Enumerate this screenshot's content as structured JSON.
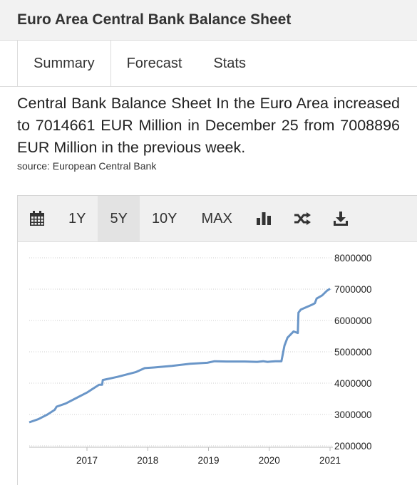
{
  "header": {
    "title": "Euro Area Central Bank Balance Sheet"
  },
  "tabs": [
    {
      "label": "Summary"
    },
    {
      "label": "Forecast"
    },
    {
      "label": "Stats"
    }
  ],
  "summary": {
    "text": "Central Bank Balance Sheet In the Euro Area increased to 7014661 EUR Million in December 25 from 7008896 EUR Million in the previous week.",
    "source": "source: European Central Bank"
  },
  "toolbar": {
    "calendar_icon": "calendar-icon",
    "ranges": [
      "1Y",
      "5Y",
      "10Y",
      "MAX"
    ],
    "selected_range": "5Y",
    "bar_chart_icon": "bar-chart-icon",
    "shuffle_icon": "shuffle-icon",
    "download_icon": "download-icon"
  },
  "colors": {
    "line": "#6a96c8",
    "toolbar_bg": "#f0f0f0"
  },
  "chart_data": {
    "type": "line",
    "title": "",
    "xlabel": "",
    "ylabel": "",
    "xlim": [
      2016.05,
      2021.0
    ],
    "ylim": [
      2000000,
      8000000
    ],
    "y_ticks": [
      "8000000",
      "7000000",
      "6000000",
      "5000000",
      "4000000",
      "3000000",
      "2000000"
    ],
    "x_ticks": [
      "2017",
      "2018",
      "2019",
      "2020",
      "2021"
    ],
    "grid": "horizontal dotted",
    "series": [
      {
        "x": [
          2016.05,
          2016.2,
          2016.35,
          2016.47,
          2016.5,
          2016.65,
          2016.8,
          2017.0,
          2017.2,
          2017.25,
          2017.26,
          2017.5,
          2017.8,
          2017.95,
          2018.1,
          2018.4,
          2018.7,
          2018.98,
          2019.1,
          2019.3,
          2019.6,
          2019.8,
          2019.9,
          2019.97,
          2020.1,
          2020.2,
          2020.25,
          2020.3,
          2020.4,
          2020.47,
          2020.48,
          2020.52,
          2020.7,
          2020.75,
          2020.78,
          2020.87,
          2020.95,
          2021.0
        ],
        "y": [
          2750000,
          2850000,
          3000000,
          3150000,
          3250000,
          3350000,
          3500000,
          3700000,
          3950000,
          3950000,
          4100000,
          4200000,
          4350000,
          4480000,
          4500000,
          4550000,
          4620000,
          4650000,
          4700000,
          4690000,
          4690000,
          4680000,
          4700000,
          4680000,
          4700000,
          4700000,
          5200000,
          5450000,
          5650000,
          5600000,
          6250000,
          6350000,
          6500000,
          6550000,
          6700000,
          6800000,
          6950000,
          7014661
        ]
      }
    ]
  }
}
